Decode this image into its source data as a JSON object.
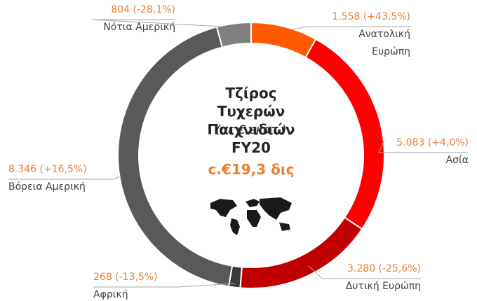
{
  "chart_data": {
    "type": "donut",
    "title": "Τζίρος Τυχερών Παιχνιδιών FY20",
    "subtitle": "(σε € εκατ.)",
    "annotation": "c.€19,3 δις",
    "categories": [
      "Ανατολική Ευρώπη",
      "Ασία",
      "Δυτική Ευρώπη",
      "Αφρική",
      "Βόρεια Αμερική",
      "Νότια Αμερική"
    ],
    "values": [
      1558,
      5083,
      3280,
      268,
      8346,
      804
    ],
    "value_labels": [
      "1.558 (+43,5%)",
      "5.083 (+4,0%)",
      "3.280 (-25,6%)",
      "268 (-13,5%)",
      "8.346 (+16,5%)",
      "804 (-28,1%)"
    ],
    "colors": [
      "#ff5a00",
      "#ff0000",
      "#c00000",
      "#3a3a3a",
      "#595959",
      "#7f7f7f"
    ]
  }
}
